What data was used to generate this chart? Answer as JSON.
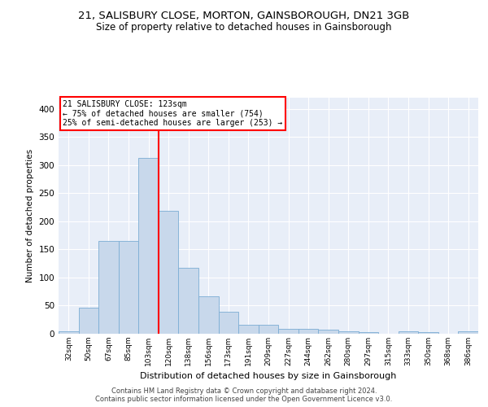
{
  "title1": "21, SALISBURY CLOSE, MORTON, GAINSBOROUGH, DN21 3GB",
  "title2": "Size of property relative to detached houses in Gainsborough",
  "xlabel": "Distribution of detached houses by size in Gainsborough",
  "ylabel": "Number of detached properties",
  "bin_labels": [
    "32sqm",
    "50sqm",
    "67sqm",
    "85sqm",
    "103sqm",
    "120sqm",
    "138sqm",
    "156sqm",
    "173sqm",
    "191sqm",
    "209sqm",
    "227sqm",
    "244sqm",
    "262sqm",
    "280sqm",
    "297sqm",
    "315sqm",
    "333sqm",
    "350sqm",
    "368sqm",
    "386sqm"
  ],
  "bar_heights": [
    5,
    46,
    165,
    165,
    313,
    219,
    117,
    66,
    39,
    16,
    16,
    9,
    9,
    7,
    5,
    3,
    0,
    4,
    3,
    0,
    4
  ],
  "bar_color": "#c8d8eb",
  "bar_edgecolor": "#7badd4",
  "vline_color": "red",
  "vline_pos": 4.5,
  "annotation_text": "21 SALISBURY CLOSE: 123sqm\n← 75% of detached houses are smaller (754)\n25% of semi-detached houses are larger (253) →",
  "annotation_box_facecolor": "white",
  "annotation_box_edgecolor": "red",
  "ylim": [
    0,
    420
  ],
  "yticks": [
    0,
    50,
    100,
    150,
    200,
    250,
    300,
    350,
    400
  ],
  "background_color": "#e8eef8",
  "grid_color": "white",
  "footer1": "Contains HM Land Registry data © Crown copyright and database right 2024.",
  "footer2": "Contains public sector information licensed under the Open Government Licence v3.0."
}
